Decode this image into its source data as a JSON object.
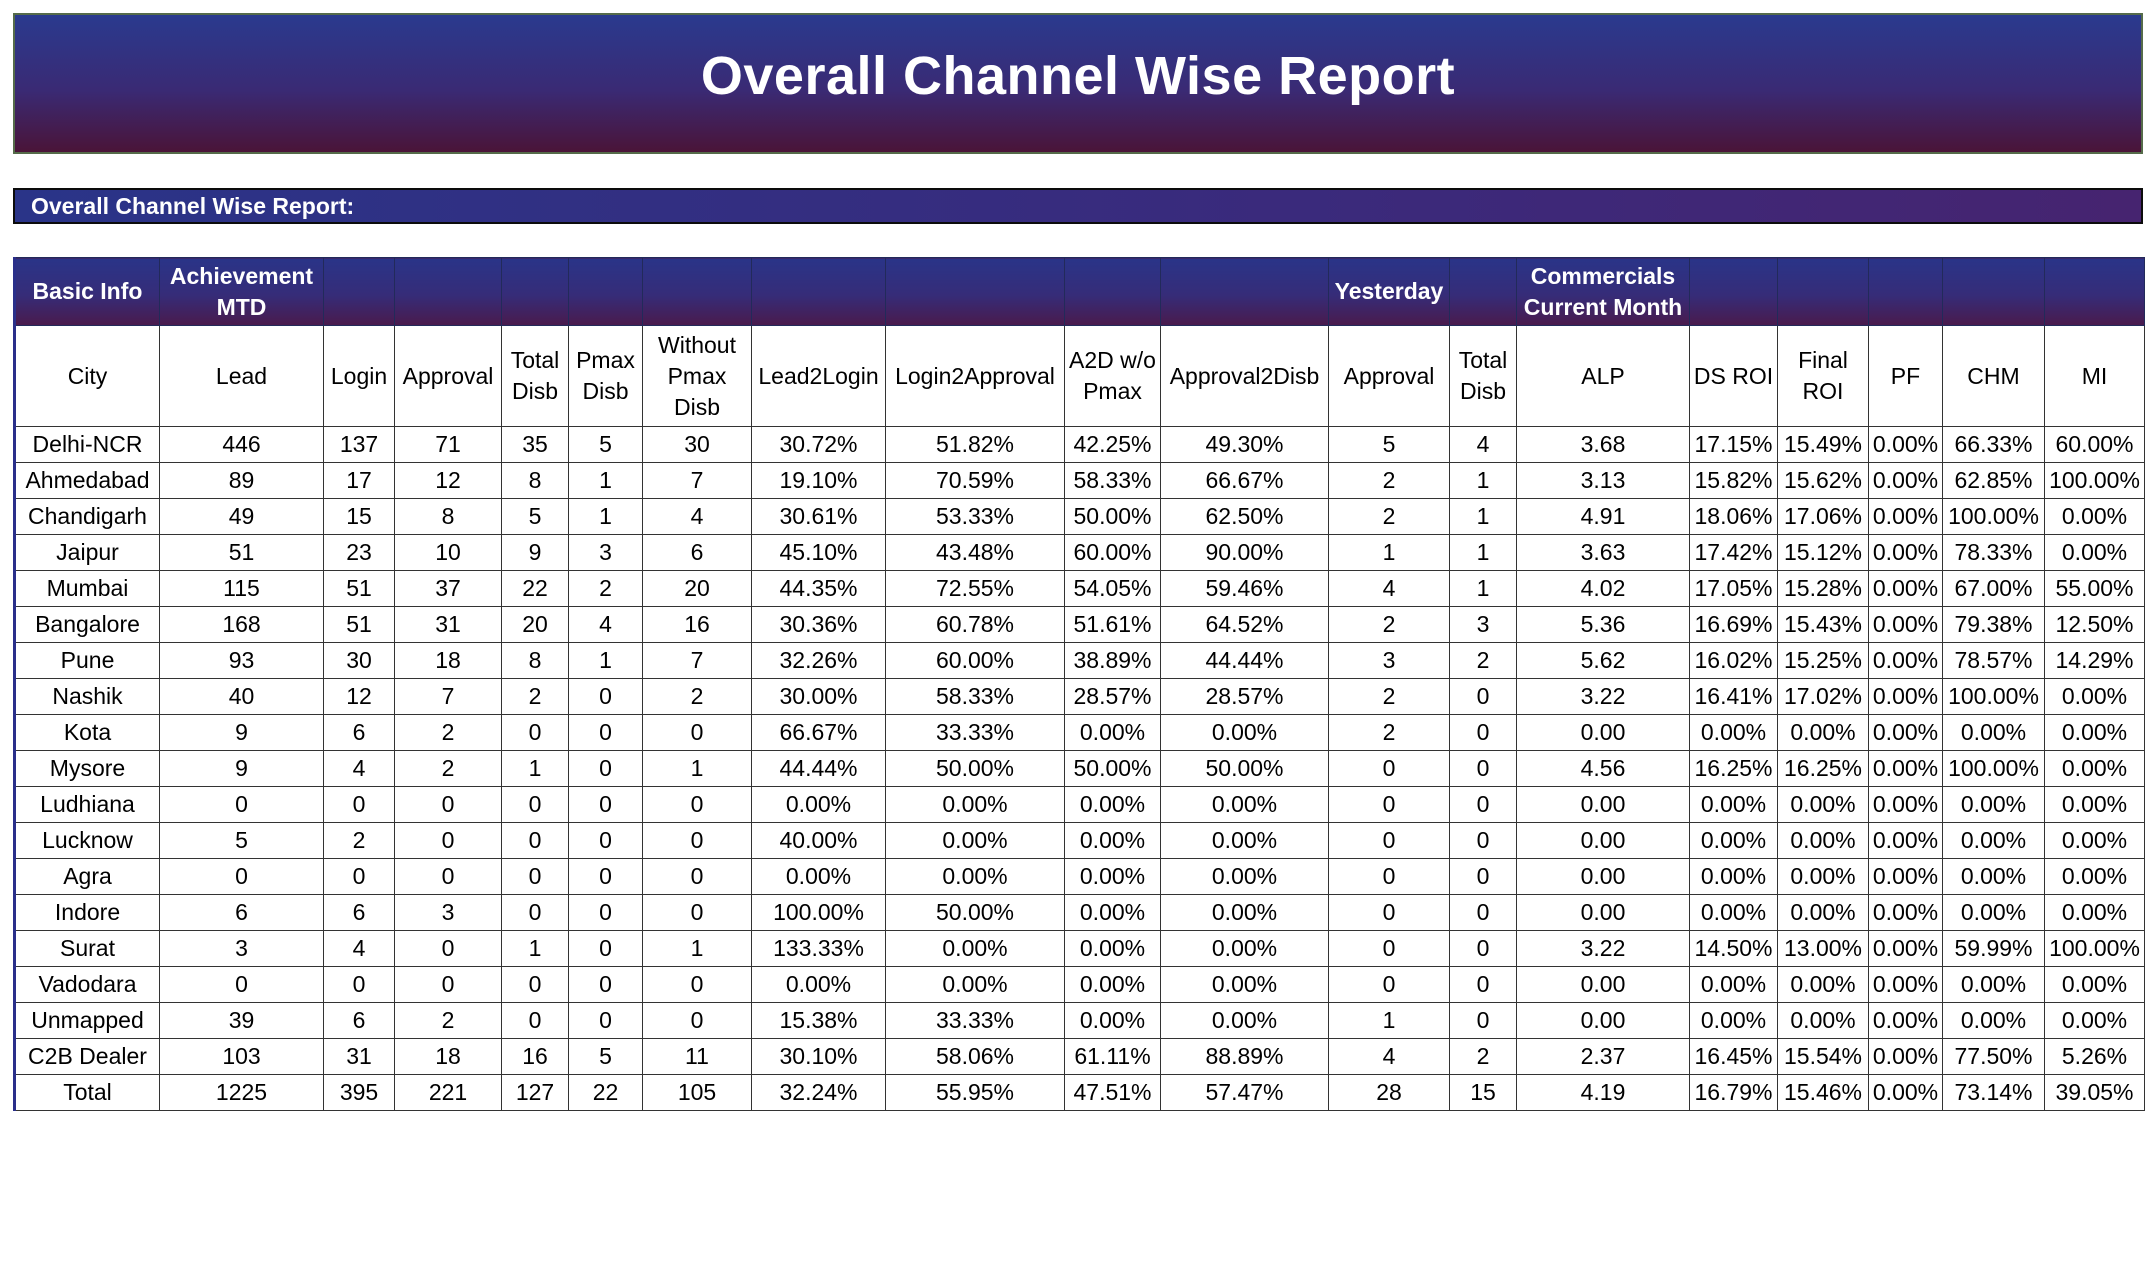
{
  "header": {
    "title": "Overall Channel Wise Report"
  },
  "section": {
    "label": "Overall Channel Wise Report:"
  },
  "table": {
    "groups": [
      "Basic Info",
      "Achievement MTD",
      "",
      "",
      "",
      "",
      "",
      "",
      "",
      "",
      "",
      "Yesterday",
      "",
      "Commercials Current Month",
      "",
      "",
      "",
      "",
      ""
    ],
    "columns": [
      "City",
      "Lead",
      "Login",
      "Approval",
      "Total Disb",
      "Pmax Disb",
      "Without Pmax Disb",
      "Lead2Login",
      "Login2Approval",
      "A2D w/o Pmax",
      "Approval2Disb",
      "Approval",
      "Total Disb",
      "ALP",
      "DS ROI",
      "Final ROI",
      "PF",
      "CHM",
      "MI"
    ],
    "rows": [
      [
        "Delhi-NCR",
        "446",
        "137",
        "71",
        "35",
        "5",
        "30",
        "30.72%",
        "51.82%",
        "42.25%",
        "49.30%",
        "5",
        "4",
        "3.68",
        "17.15%",
        "15.49%",
        "0.00%",
        "66.33%",
        "60.00%"
      ],
      [
        "Ahmedabad",
        "89",
        "17",
        "12",
        "8",
        "1",
        "7",
        "19.10%",
        "70.59%",
        "58.33%",
        "66.67%",
        "2",
        "1",
        "3.13",
        "15.82%",
        "15.62%",
        "0.00%",
        "62.85%",
        "100.00%"
      ],
      [
        "Chandigarh",
        "49",
        "15",
        "8",
        "5",
        "1",
        "4",
        "30.61%",
        "53.33%",
        "50.00%",
        "62.50%",
        "2",
        "1",
        "4.91",
        "18.06%",
        "17.06%",
        "0.00%",
        "100.00%",
        "0.00%"
      ],
      [
        "Jaipur",
        "51",
        "23",
        "10",
        "9",
        "3",
        "6",
        "45.10%",
        "43.48%",
        "60.00%",
        "90.00%",
        "1",
        "1",
        "3.63",
        "17.42%",
        "15.12%",
        "0.00%",
        "78.33%",
        "0.00%"
      ],
      [
        "Mumbai",
        "115",
        "51",
        "37",
        "22",
        "2",
        "20",
        "44.35%",
        "72.55%",
        "54.05%",
        "59.46%",
        "4",
        "1",
        "4.02",
        "17.05%",
        "15.28%",
        "0.00%",
        "67.00%",
        "55.00%"
      ],
      [
        "Bangalore",
        "168",
        "51",
        "31",
        "20",
        "4",
        "16",
        "30.36%",
        "60.78%",
        "51.61%",
        "64.52%",
        "2",
        "3",
        "5.36",
        "16.69%",
        "15.43%",
        "0.00%",
        "79.38%",
        "12.50%"
      ],
      [
        "Pune",
        "93",
        "30",
        "18",
        "8",
        "1",
        "7",
        "32.26%",
        "60.00%",
        "38.89%",
        "44.44%",
        "3",
        "2",
        "5.62",
        "16.02%",
        "15.25%",
        "0.00%",
        "78.57%",
        "14.29%"
      ],
      [
        "Nashik",
        "40",
        "12",
        "7",
        "2",
        "0",
        "2",
        "30.00%",
        "58.33%",
        "28.57%",
        "28.57%",
        "2",
        "0",
        "3.22",
        "16.41%",
        "17.02%",
        "0.00%",
        "100.00%",
        "0.00%"
      ],
      [
        "Kota",
        "9",
        "6",
        "2",
        "0",
        "0",
        "0",
        "66.67%",
        "33.33%",
        "0.00%",
        "0.00%",
        "2",
        "0",
        "0.00",
        "0.00%",
        "0.00%",
        "0.00%",
        "0.00%",
        "0.00%"
      ],
      [
        "Mysore",
        "9",
        "4",
        "2",
        "1",
        "0",
        "1",
        "44.44%",
        "50.00%",
        "50.00%",
        "50.00%",
        "0",
        "0",
        "4.56",
        "16.25%",
        "16.25%",
        "0.00%",
        "100.00%",
        "0.00%"
      ],
      [
        "Ludhiana",
        "0",
        "0",
        "0",
        "0",
        "0",
        "0",
        "0.00%",
        "0.00%",
        "0.00%",
        "0.00%",
        "0",
        "0",
        "0.00",
        "0.00%",
        "0.00%",
        "0.00%",
        "0.00%",
        "0.00%"
      ],
      [
        "Lucknow",
        "5",
        "2",
        "0",
        "0",
        "0",
        "0",
        "40.00%",
        "0.00%",
        "0.00%",
        "0.00%",
        "0",
        "0",
        "0.00",
        "0.00%",
        "0.00%",
        "0.00%",
        "0.00%",
        "0.00%"
      ],
      [
        "Agra",
        "0",
        "0",
        "0",
        "0",
        "0",
        "0",
        "0.00%",
        "0.00%",
        "0.00%",
        "0.00%",
        "0",
        "0",
        "0.00",
        "0.00%",
        "0.00%",
        "0.00%",
        "0.00%",
        "0.00%"
      ],
      [
        "Indore",
        "6",
        "6",
        "3",
        "0",
        "0",
        "0",
        "100.00%",
        "50.00%",
        "0.00%",
        "0.00%",
        "0",
        "0",
        "0.00",
        "0.00%",
        "0.00%",
        "0.00%",
        "0.00%",
        "0.00%"
      ],
      [
        "Surat",
        "3",
        "4",
        "0",
        "1",
        "0",
        "1",
        "133.33%",
        "0.00%",
        "0.00%",
        "0.00%",
        "0",
        "0",
        "3.22",
        "14.50%",
        "13.00%",
        "0.00%",
        "59.99%",
        "100.00%"
      ],
      [
        "Vadodara",
        "0",
        "0",
        "0",
        "0",
        "0",
        "0",
        "0.00%",
        "0.00%",
        "0.00%",
        "0.00%",
        "0",
        "0",
        "0.00",
        "0.00%",
        "0.00%",
        "0.00%",
        "0.00%",
        "0.00%"
      ],
      [
        "Unmapped",
        "39",
        "6",
        "2",
        "0",
        "0",
        "0",
        "15.38%",
        "33.33%",
        "0.00%",
        "0.00%",
        "1",
        "0",
        "0.00",
        "0.00%",
        "0.00%",
        "0.00%",
        "0.00%",
        "0.00%"
      ],
      [
        "C2B Dealer",
        "103",
        "31",
        "18",
        "16",
        "5",
        "11",
        "30.10%",
        "58.06%",
        "61.11%",
        "88.89%",
        "4",
        "2",
        "2.37",
        "16.45%",
        "15.54%",
        "0.00%",
        "77.50%",
        "5.26%"
      ],
      [
        "Total",
        "1225",
        "395",
        "221",
        "127",
        "22",
        "105",
        "32.24%",
        "55.95%",
        "47.51%",
        "57.47%",
        "28",
        "15",
        "4.19",
        "16.79%",
        "15.46%",
        "0.00%",
        "73.14%",
        "39.05%"
      ]
    ]
  }
}
